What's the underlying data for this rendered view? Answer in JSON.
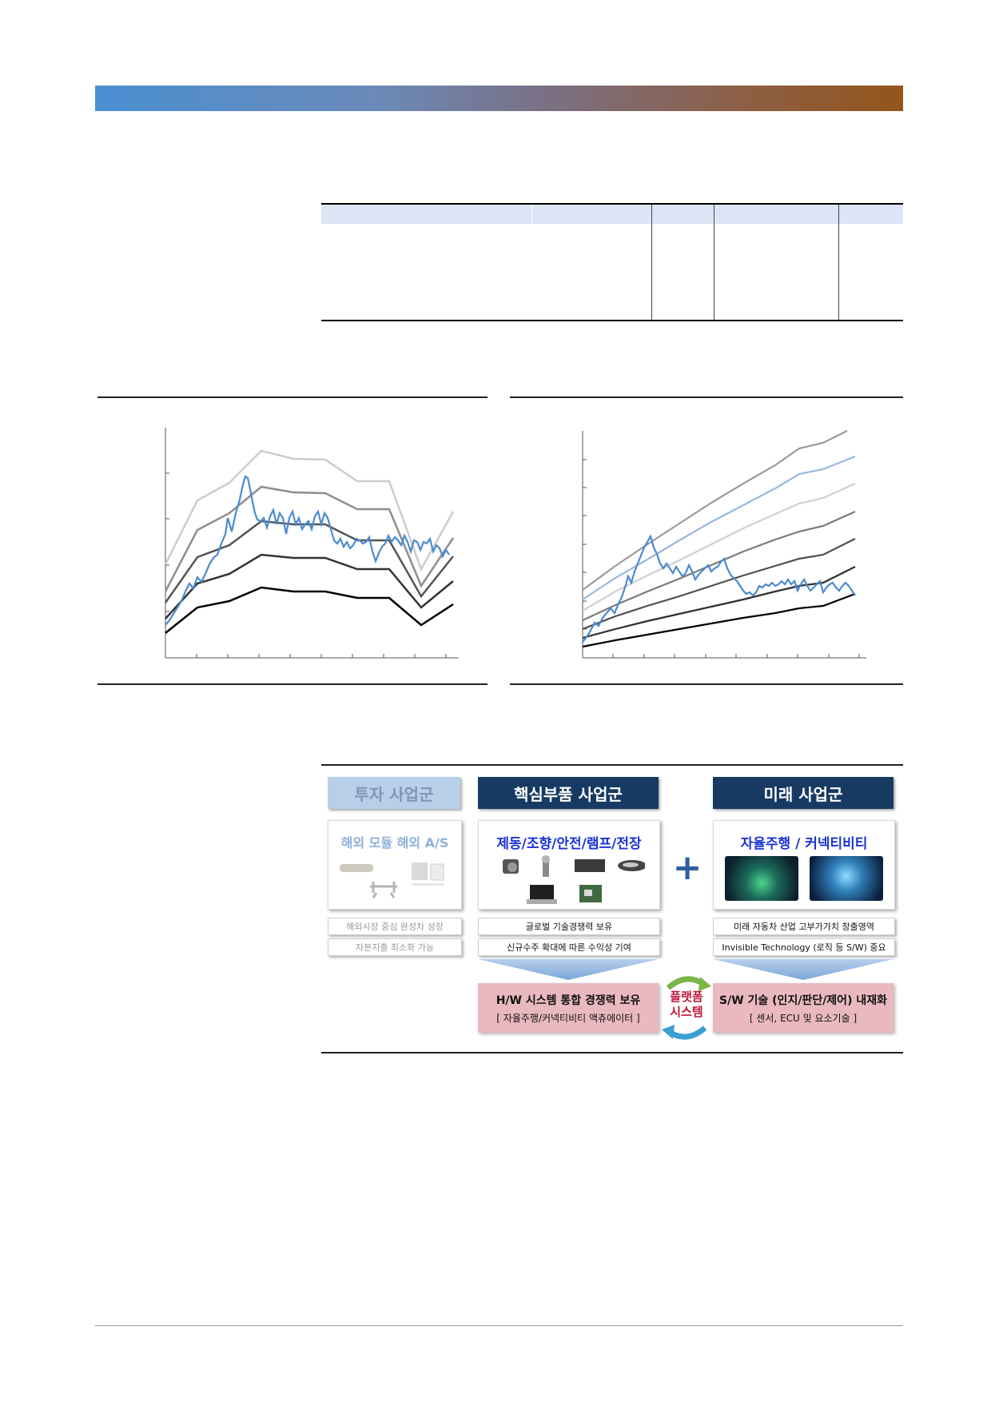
{
  "diagram": {
    "invest": {
      "header": "투자 사업군",
      "title": "해외 모듈  해외 A/S",
      "pill1": "해외시장 중심 완성차 성장",
      "pill2": "자본지출 최소화 가능"
    },
    "core": {
      "header": "핵심부품 사업군",
      "title": "제동/조향/안전/램프/전장",
      "pill1": "글로벌 기술경쟁력 보유",
      "pill2": "신규수주 확대에 따른 수익성 기여",
      "result_line1": "H/W 시스템 통합 경쟁력 보유",
      "result_line2": "[ 자율주행/커넥티비티 액츄에이터 ]"
    },
    "future": {
      "header": "미래 사업군",
      "title": "자율주행 / 커넥티비티",
      "pill1": "미래 자동차 산업 고부가가치 창출영역",
      "pill2": "Invisible Technology (로직 등 S/W) 중요",
      "result_line1": "S/W 기술 (인지/판단/제어) 내재화",
      "result_line2": "[ 센서, ECU 및 요소기술 ]"
    },
    "plus": "+",
    "platform_line1": "플랫폼",
    "platform_line2": "시스템"
  },
  "colors": {
    "header_gradient_start": "#4a8fd2",
    "header_gradient_end": "#93561c",
    "dark_box": "#173a63",
    "light_box": "#b7cfe8",
    "result_box": "#e9b9bf",
    "price_line": "#4a8bd0",
    "arrow_green": "#7ab648",
    "arrow_blue": "#3a9fd0",
    "platform_text": "#c0163a",
    "title_blue": "#1a33d6"
  }
}
